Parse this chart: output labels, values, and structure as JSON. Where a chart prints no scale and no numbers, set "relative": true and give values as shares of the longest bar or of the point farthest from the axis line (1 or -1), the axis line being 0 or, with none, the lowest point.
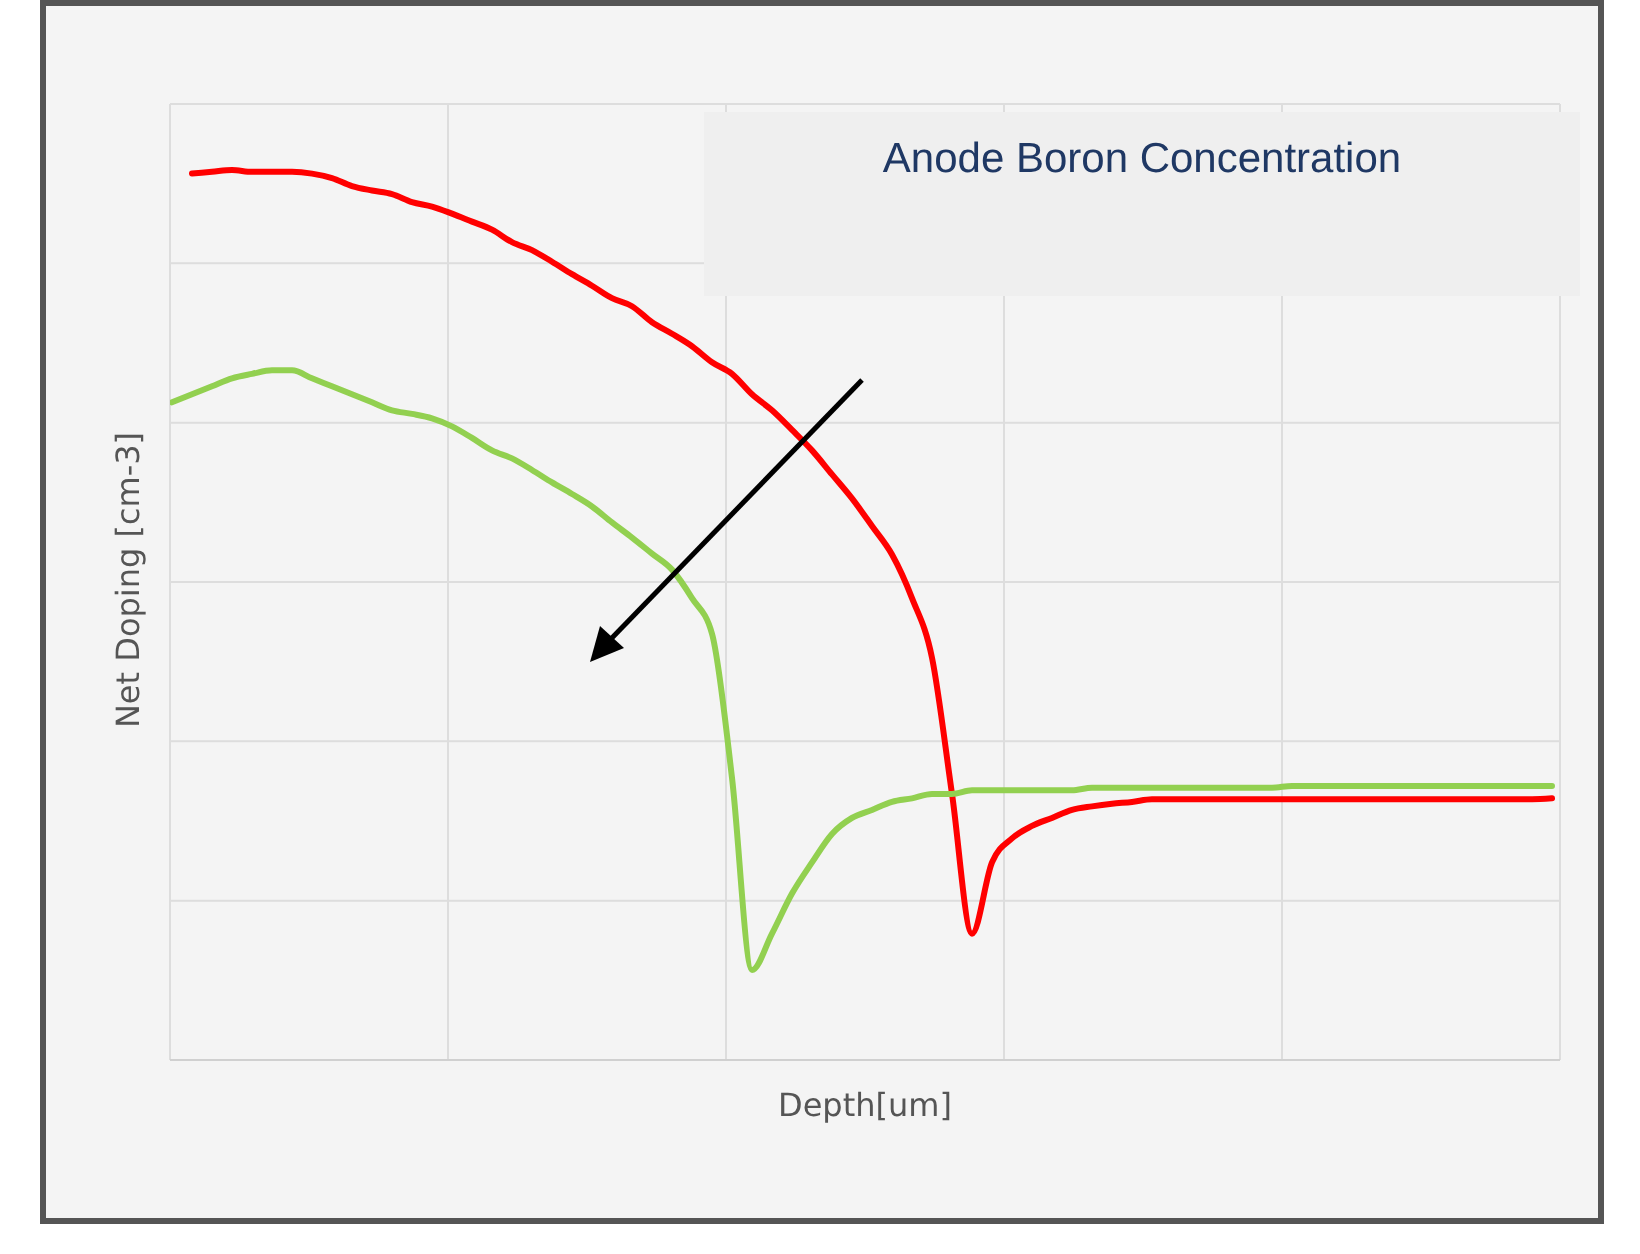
{
  "chart_data": {
    "type": "line",
    "title": "Anode Boron Concentration",
    "xlabel": "Depth[um]",
    "ylabel": "Net Doping [cm-3]",
    "relative": true,
    "grid": true,
    "marker": "none",
    "line_style": "solid",
    "categories": [
      null,
      null,
      null,
      null,
      null,
      null,
      null,
      null,
      null,
      null,
      null,
      null,
      null,
      null,
      null,
      null,
      null,
      null,
      null,
      null,
      null,
      null,
      null,
      null,
      null,
      null,
      null,
      null,
      null,
      null,
      null,
      null,
      null,
      null,
      null,
      null,
      null,
      null,
      null,
      null,
      null,
      null,
      null,
      null,
      null,
      null,
      null,
      null,
      null,
      null,
      null,
      null,
      null,
      null,
      null,
      null,
      null,
      null,
      null,
      null,
      null,
      null,
      null,
      null,
      null,
      null,
      null,
      null,
      null,
      null
    ],
    "series": [
      {
        "color": "#ff0000",
        "values": [
          null,
          0.996,
          0.998,
          1,
          0.998,
          0.998,
          0.998,
          0.996,
          0.991,
          0.982,
          0.977,
          0.973,
          0.964,
          0.959,
          0.951,
          0.942,
          0.933,
          0.919,
          0.91,
          0.897,
          0.883,
          0.87,
          0.856,
          0.847,
          0.829,
          0.816,
          0.802,
          0.784,
          0.771,
          0.748,
          0.73,
          0.708,
          0.685,
          0.658,
          0.631,
          0.6,
          0.568,
          0.519,
          0.452,
          0.299,
          0.142,
          0.222,
          0.249,
          0.263,
          0.272,
          0.281,
          0.285,
          0.288,
          0.29,
          0.293,
          0.293,
          0.293,
          0.293,
          0.293,
          0.293,
          0.293,
          0.293,
          0.293,
          0.293,
          0.293,
          0.293,
          0.293,
          0.293,
          0.293,
          0.293,
          0.293,
          0.293,
          0.293,
          0.293,
          0.294
        ]
      },
      {
        "color": "#92d050",
        "values": [
          0.739,
          0.748,
          0.757,
          0.766,
          0.771,
          0.775,
          0.775,
          0.766,
          0.757,
          0.748,
          0.739,
          0.73,
          0.726,
          0.721,
          0.712,
          0.699,
          0.685,
          0.676,
          0.663,
          0.649,
          0.636,
          0.622,
          0.604,
          0.587,
          0.569,
          0.551,
          0.519,
          0.479,
          0.317,
          0.101,
          0.142,
          0.187,
          0.222,
          0.254,
          0.272,
          0.281,
          0.29,
          0.294,
          0.299,
          0.299,
          0.303,
          0.303,
          0.303,
          0.303,
          0.303,
          0.303,
          0.306,
          0.306,
          0.306,
          0.306,
          0.306,
          0.306,
          0.306,
          0.306,
          0.306,
          0.306,
          0.308,
          0.308,
          0.308,
          0.308,
          0.308,
          0.308,
          0.308,
          0.308,
          0.308,
          0.308,
          0.308,
          0.308,
          0.308,
          0.308
        ]
      }
    ]
  }
}
